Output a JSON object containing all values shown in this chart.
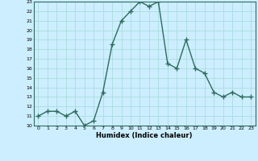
{
  "xlabel": "Humidex (Indice chaleur)",
  "x": [
    0,
    1,
    2,
    3,
    4,
    5,
    6,
    7,
    8,
    9,
    10,
    11,
    12,
    13,
    14,
    15,
    16,
    17,
    18,
    19,
    20,
    21,
    22,
    23
  ],
  "y": [
    11,
    11.5,
    11.5,
    11,
    11.5,
    10,
    10.5,
    13.5,
    18.5,
    21,
    22,
    23,
    22.5,
    23,
    16.5,
    16,
    19,
    16,
    15.5,
    13.5,
    13,
    13.5,
    13,
    13
  ],
  "line_color": "#2e6b5e",
  "bg_color": "#cceeff",
  "grid_color": "#aadddd",
  "ylim": [
    10,
    23
  ],
  "xlim": [
    -0.5,
    23.5
  ],
  "yticks": [
    10,
    11,
    12,
    13,
    14,
    15,
    16,
    17,
    18,
    19,
    20,
    21,
    22,
    23
  ],
  "xticks": [
    0,
    1,
    2,
    3,
    4,
    5,
    6,
    7,
    8,
    9,
    10,
    11,
    12,
    13,
    14,
    15,
    16,
    17,
    18,
    19,
    20,
    21,
    22,
    23
  ]
}
